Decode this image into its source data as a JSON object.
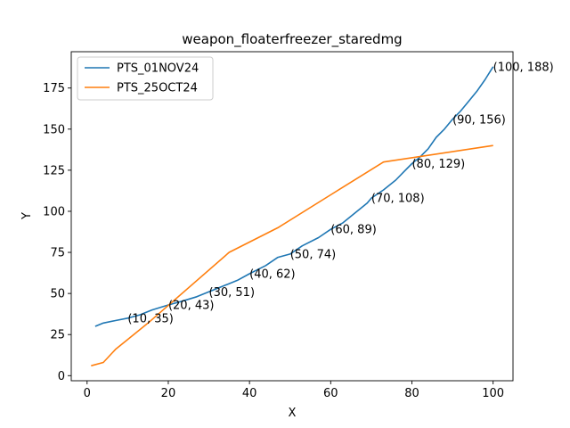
{
  "chart_data": {
    "type": "line",
    "title": "weapon_floaterfreezer_staredmg",
    "xlabel": "X",
    "ylabel": "Y",
    "xlim": [
      -3.9,
      104.9
    ],
    "ylim": [
      -3.1,
      197.1
    ],
    "xticks": [
      0,
      20,
      40,
      60,
      80,
      100
    ],
    "yticks": [
      0,
      25,
      50,
      75,
      100,
      125,
      150,
      175
    ],
    "grid": false,
    "legend_position": "top-left",
    "series": [
      {
        "name": "PTS_01NOV24",
        "color": "#1f77b4",
        "x": [
          2,
          4,
          7,
          10,
          13,
          16,
          20,
          23,
          27,
          30,
          33,
          37,
          40,
          44,
          47,
          50,
          53,
          57,
          60,
          63,
          66,
          69,
          70,
          73,
          76,
          78,
          80,
          82,
          84,
          86,
          88,
          90,
          92,
          94,
          96,
          98,
          100
        ],
        "y": [
          30,
          32,
          33.5,
          35,
          37,
          40,
          43,
          45,
          48,
          51,
          54,
          58,
          62,
          67,
          72,
          74,
          79,
          84,
          89,
          93,
          99,
          105,
          108,
          113,
          119,
          124,
          129,
          133,
          138,
          145,
          150,
          156,
          161,
          167,
          173,
          180,
          188
        ]
      },
      {
        "name": "PTS_25OCT24",
        "color": "#ff7f0e",
        "x": [
          1,
          4,
          7,
          15,
          35,
          47,
          60,
          73,
          100
        ],
        "y": [
          6,
          8,
          16,
          32,
          75,
          90,
          110,
          130,
          140
        ]
      }
    ],
    "annotations": [
      {
        "text": "(10, 35)",
        "x": 10,
        "y": 35
      },
      {
        "text": "(20, 43)",
        "x": 20,
        "y": 43
      },
      {
        "text": "(30, 51)",
        "x": 30,
        "y": 51
      },
      {
        "text": "(40, 62)",
        "x": 40,
        "y": 62
      },
      {
        "text": "(50, 74)",
        "x": 50,
        "y": 74
      },
      {
        "text": "(60, 89)",
        "x": 60,
        "y": 89
      },
      {
        "text": "(70, 108)",
        "x": 70,
        "y": 108
      },
      {
        "text": "(80, 129)",
        "x": 80,
        "y": 129
      },
      {
        "text": "(90, 156)",
        "x": 90,
        "y": 156
      },
      {
        "text": "(100, 188)",
        "x": 100,
        "y": 188
      }
    ]
  }
}
